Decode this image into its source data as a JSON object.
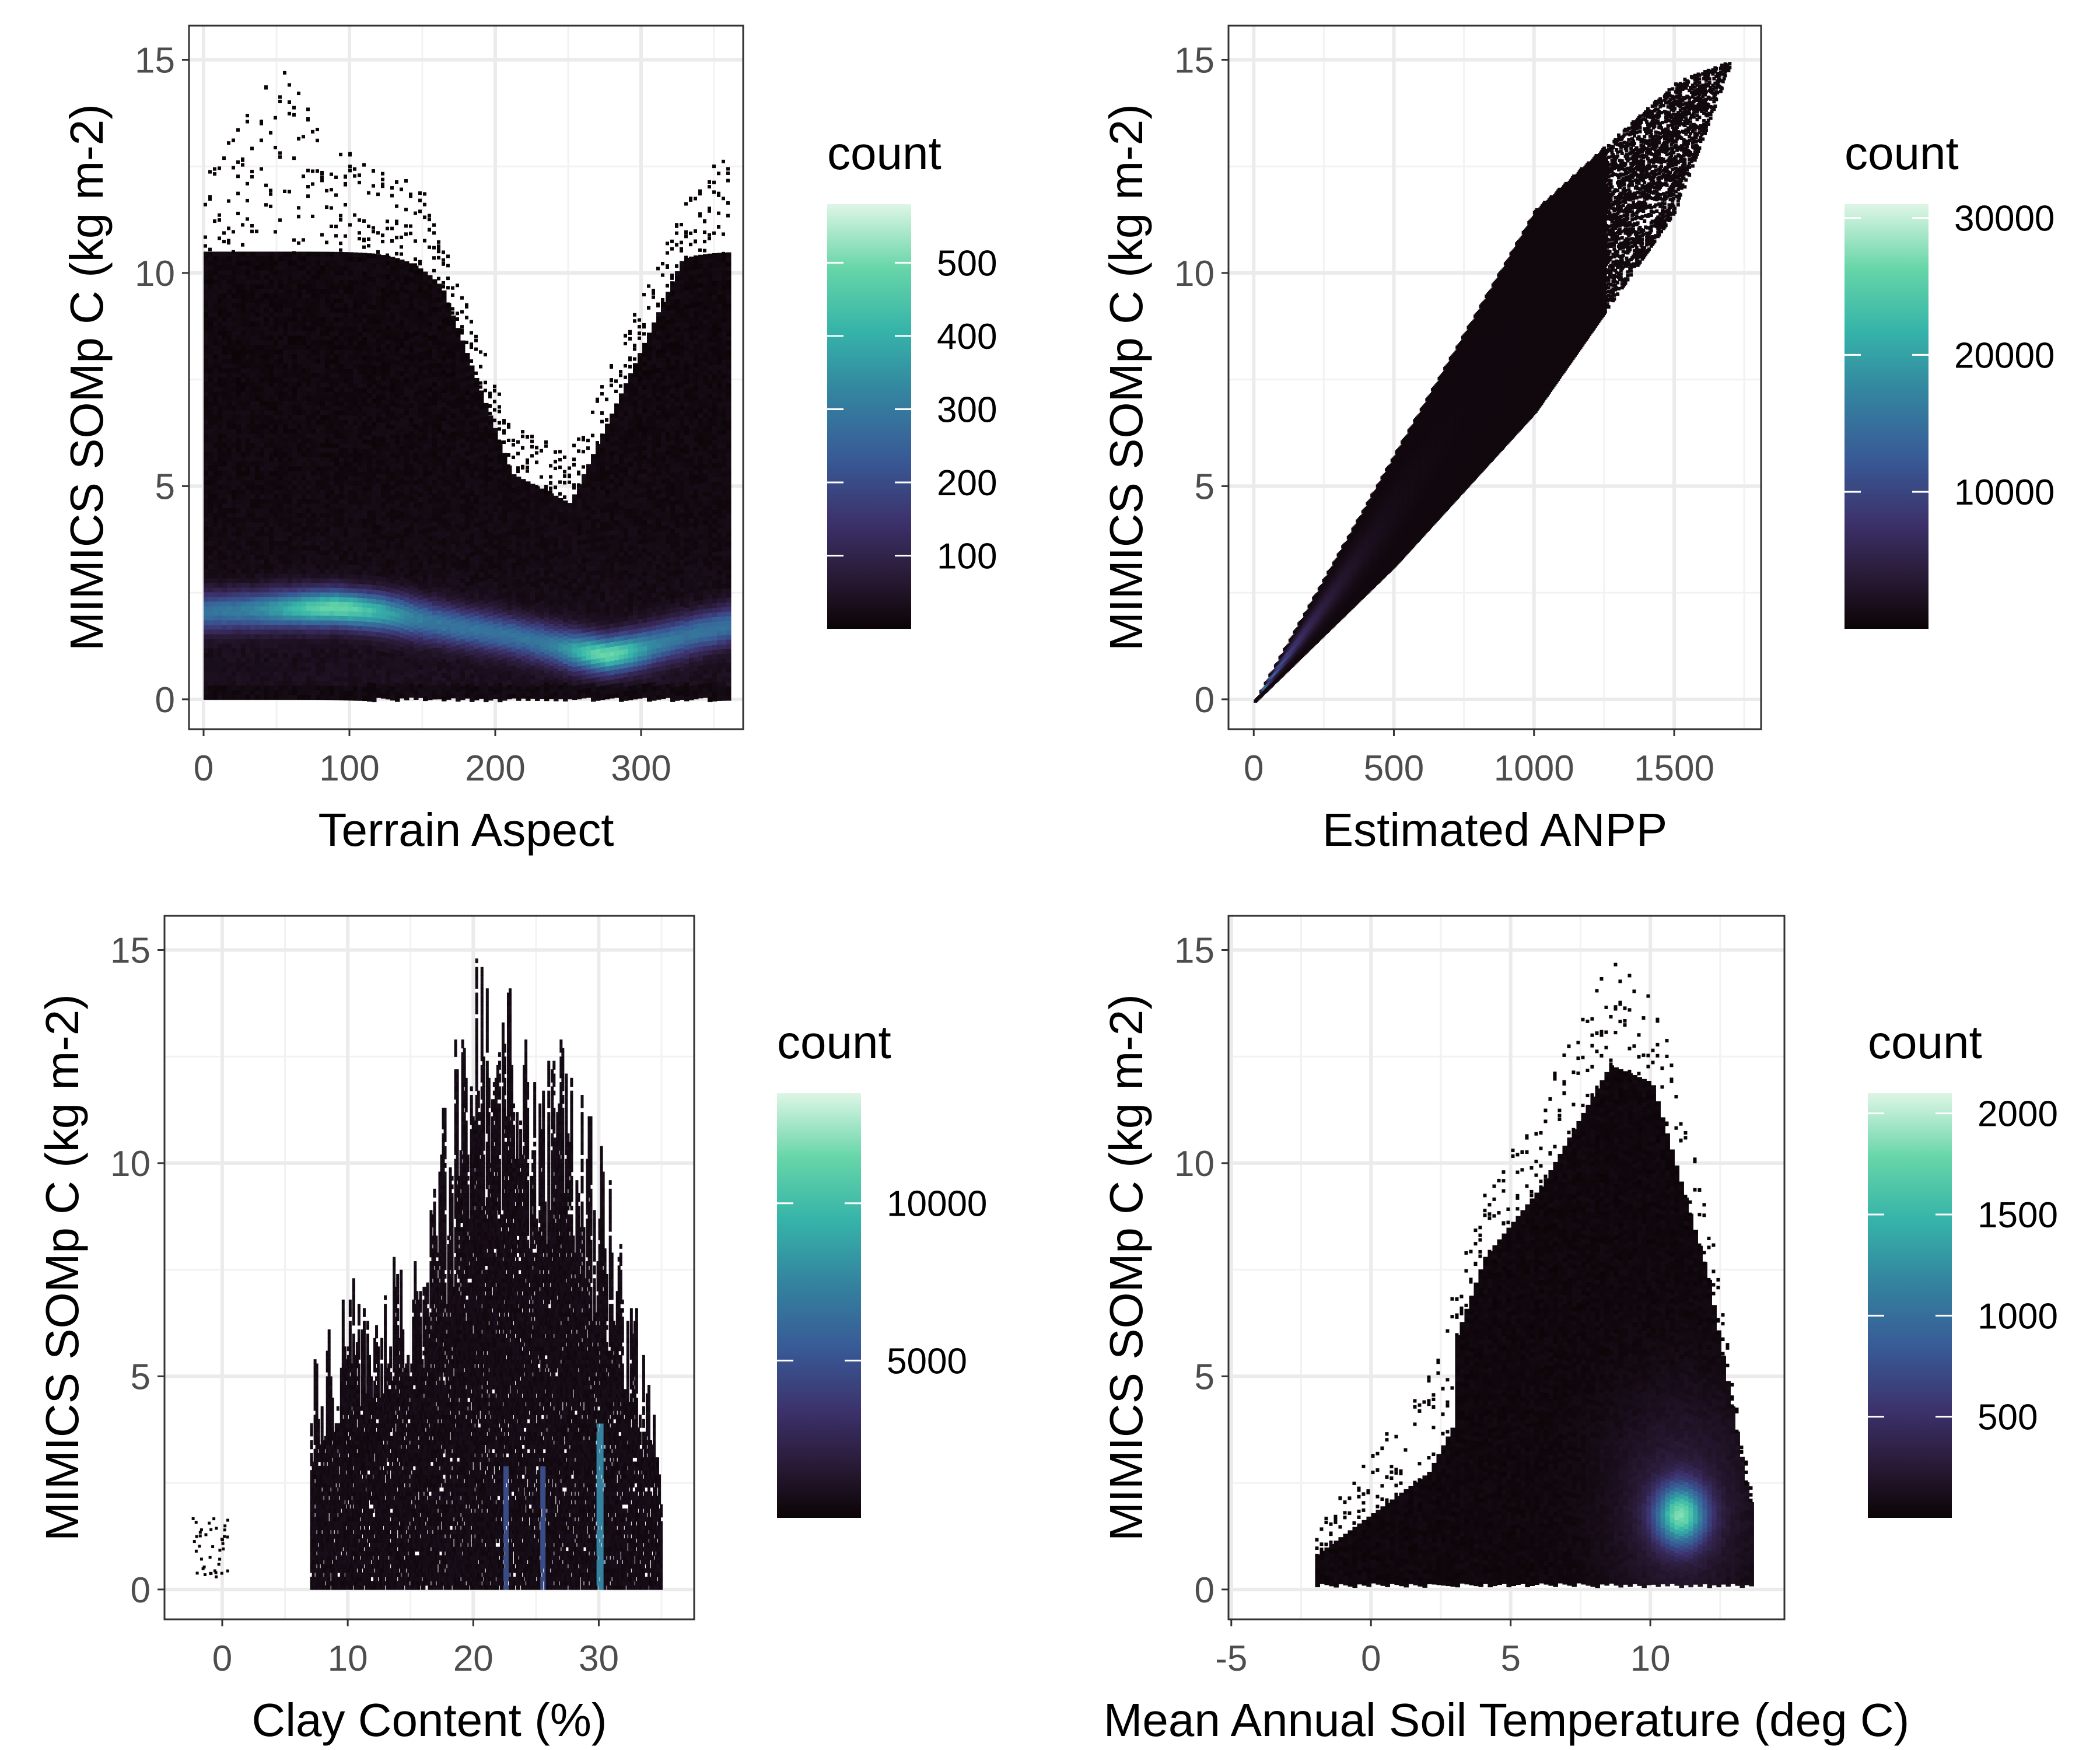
{
  "chart_data": [
    {
      "type": "heatmap",
      "title": "",
      "xlabel": "Terrain Aspect",
      "ylabel": "MIMICS SOMp C (kg m-2)",
      "xlim": [
        -10,
        370
      ],
      "ylim": [
        -0.7,
        15.8
      ],
      "xticks": [
        0,
        100,
        200,
        300
      ],
      "yticks": [
        0,
        5,
        10,
        15
      ],
      "grid": true,
      "legend": {
        "title": "count",
        "position": "right",
        "min": 0,
        "max": 580,
        "ticks": [
          100,
          200,
          300,
          400,
          500
        ]
      },
      "density_regions": [
        {
          "name": "high-density band",
          "x": [
            0,
            360
          ],
          "y_center": [
            2.2,
            1.2
          ],
          "peak_x": 90,
          "peak_y": 2.2,
          "count": 520
        },
        {
          "name": "secondary peak",
          "peak_x": 275,
          "peak_y": 1.1,
          "count": 480
        }
      ],
      "envelope": {
        "x": [
          0,
          50,
          90,
          150,
          210,
          250,
          300,
          340,
          360
        ],
        "y_max": [
          12.5,
          15.0,
          13.0,
          12.0,
          6.5,
          5.8,
          9.5,
          12.5,
          12.8
        ]
      }
    },
    {
      "type": "heatmap",
      "title": "",
      "xlabel": "Estimated ANPP",
      "ylabel": "MIMICS SOMp C (kg m-2)",
      "xlim": [
        -90,
        1810
      ],
      "ylim": [
        -0.7,
        15.8
      ],
      "xticks": [
        0,
        500,
        1000,
        1500
      ],
      "yticks": [
        0,
        5,
        10,
        15
      ],
      "grid": true,
      "legend": {
        "title": "count",
        "position": "right",
        "min": 0,
        "max": 31000,
        "ticks": [
          10000,
          20000,
          30000
        ]
      },
      "density_regions": [
        {
          "name": "dense core near origin",
          "peak_x": 100,
          "peak_y": 1.0,
          "count": 30000
        }
      ],
      "envelope": {
        "x": [
          0,
          500,
          1000,
          1500,
          1700
        ],
        "y_min": [
          0,
          3.2,
          6.8,
          11.5,
          15.0
        ],
        "y_max": [
          0,
          5.8,
          11.5,
          14.5,
          15.0
        ]
      }
    },
    {
      "type": "heatmap",
      "title": "",
      "xlabel": "Clay Content (%)",
      "ylabel": "MIMICS SOMp C (kg m-2)",
      "xlim": [
        -4.6,
        37.6
      ],
      "ylim": [
        -0.7,
        15.8
      ],
      "xticks": [
        0,
        10,
        20,
        30
      ],
      "yticks": [
        0,
        5,
        10,
        15
      ],
      "grid": true,
      "legend": {
        "title": "count",
        "position": "right",
        "min": 0,
        "max": 13500,
        "ticks": [
          5000,
          10000
        ]
      },
      "density_regions": [
        {
          "name": "main mass",
          "x": [
            7,
            35
          ],
          "y": [
            0,
            14.5
          ]
        },
        {
          "name": "bright streak",
          "peak_x": 30,
          "peak_y": 2.0,
          "count": 9000
        }
      ],
      "envelope": {
        "x": [
          7,
          10,
          15,
          20,
          25,
          30,
          35
        ],
        "y_max": [
          5.2,
          7.5,
          8.8,
          15.0,
          14.2,
          11.0,
          3.5
        ]
      }
    },
    {
      "type": "heatmap",
      "title": "",
      "xlabel": "Mean Annual Soil Temperature (deg C)",
      "ylabel": "MIMICS SOMp C (kg m-2)",
      "xlim": [
        -5.1,
        14.8
      ],
      "ylim": [
        -0.7,
        15.8
      ],
      "xticks": [
        -5,
        0,
        5,
        10
      ],
      "yticks": [
        0,
        5,
        10,
        15
      ],
      "grid": true,
      "legend": {
        "title": "count",
        "position": "right",
        "min": 0,
        "max": 2100,
        "ticks": [
          500,
          1000,
          1500,
          2000
        ]
      },
      "density_regions": [
        {
          "name": "hotspot",
          "peak_x": 11.0,
          "peak_y": 1.8,
          "count": 2000
        }
      ],
      "envelope": {
        "x": [
          -2,
          2,
          4,
          6,
          8.5,
          10,
          12,
          13.5
        ],
        "y_max": [
          1.5,
          5.0,
          9.5,
          11.5,
          15.0,
          14.5,
          9.0,
          2.5
        ]
      }
    }
  ]
}
